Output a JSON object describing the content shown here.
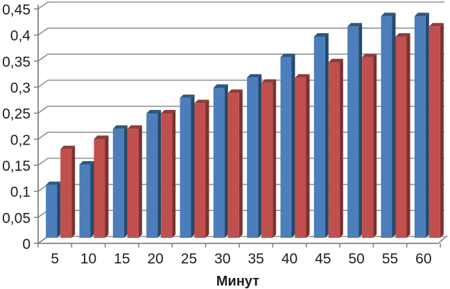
{
  "chart_data": {
    "type": "bar",
    "style": "3d-clustered-column",
    "title": "",
    "xlabel": "Минут",
    "ylabel": "",
    "categories": [
      "5",
      "10",
      "15",
      "20",
      "25",
      "30",
      "35",
      "40",
      "45",
      "50",
      "55",
      "60"
    ],
    "series": [
      {
        "name": "series-blue",
        "color": "#4b7ebb",
        "color_top": "#30597f",
        "color_side": "#27496b",
        "values": [
          0.11,
          0.15,
          0.22,
          0.25,
          0.28,
          0.3,
          0.32,
          0.36,
          0.4,
          0.42,
          0.44,
          0.44
        ]
      },
      {
        "name": "series-red",
        "color": "#c0504d",
        "color_top": "#8e3e3b",
        "color_side": "#7c312f",
        "values": [
          0.18,
          0.2,
          0.22,
          0.25,
          0.27,
          0.29,
          0.31,
          0.32,
          0.35,
          0.36,
          0.4,
          0.42
        ]
      }
    ],
    "ylim": [
      0,
      0.45
    ],
    "ytick_step": 0.05,
    "ytick_labels": [
      "0",
      "0,05",
      "0,1",
      "0,15",
      "0,2",
      "0,25",
      "0,3",
      "0,35",
      "0,4",
      "0,45"
    ],
    "grid": true,
    "legend": "none",
    "colors": {
      "background": "#ffffff",
      "gridline": "#8f8f8f",
      "axis": "#808080",
      "text": "#1c1c1c"
    }
  }
}
